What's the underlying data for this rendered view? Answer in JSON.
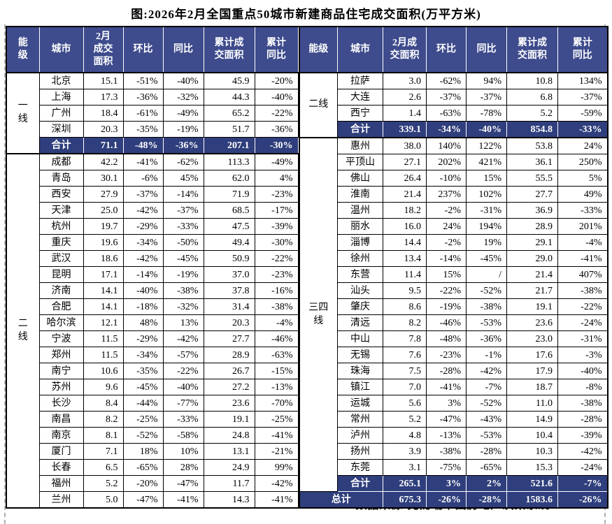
{
  "title": "图:2026年2月全国重点50城市新建商品住宅成交面积(万平方米)",
  "source": "数据来源:克而瑞中国房地产决策系统",
  "columns": [
    "能级",
    "城市",
    "2月成交面积",
    "环比",
    "同比",
    "累计成交面积",
    "累计同比"
  ],
  "colors": {
    "header_bg": "#3E4B8C",
    "highlight_bg": "#2F3E7C",
    "border": "#000000",
    "header_text": "#FFFFFF",
    "page_break_dash": "#B0B0B0"
  },
  "left": {
    "tiers": [
      {
        "label": "一线",
        "span": 5
      },
      {
        "label": "二线",
        "span": 22
      }
    ],
    "highlight_rows": [
      4
    ],
    "rows": [
      [
        "北京",
        "15.1",
        "-51%",
        "-40%",
        "45.9",
        "-20%"
      ],
      [
        "上海",
        "17.3",
        "-36%",
        "-32%",
        "44.3",
        "-40%"
      ],
      [
        "广州",
        "18.4",
        "-61%",
        "-49%",
        "65.2",
        "-22%"
      ],
      [
        "深圳",
        "20.3",
        "-35%",
        "-19%",
        "51.7",
        "-36%"
      ],
      [
        "合计",
        "71.1",
        "-48%",
        "-36%",
        "207.1",
        "-30%"
      ],
      [
        "成都",
        "42.2",
        "-41%",
        "-62%",
        "113.3",
        "-49%"
      ],
      [
        "青岛",
        "30.1",
        "-6%",
        "45%",
        "62.0",
        "4%"
      ],
      [
        "西安",
        "27.9",
        "-37%",
        "-14%",
        "71.9",
        "-23%"
      ],
      [
        "天津",
        "25.0",
        "-42%",
        "-37%",
        "68.5",
        "-17%"
      ],
      [
        "杭州",
        "19.7",
        "-29%",
        "-33%",
        "47.5",
        "-39%"
      ],
      [
        "重庆",
        "19.6",
        "-34%",
        "-50%",
        "49.4",
        "-30%"
      ],
      [
        "武汉",
        "18.6",
        "-42%",
        "-45%",
        "50.9",
        "-22%"
      ],
      [
        "昆明",
        "17.1",
        "-14%",
        "-19%",
        "37.0",
        "-23%"
      ],
      [
        "济南",
        "14.1",
        "-40%",
        "-38%",
        "37.8",
        "-16%"
      ],
      [
        "合肥",
        "14.1",
        "-18%",
        "-32%",
        "31.4",
        "-38%"
      ],
      [
        "哈尔滨",
        "12.1",
        "48%",
        "13%",
        "20.3",
        "-4%"
      ],
      [
        "宁波",
        "11.5",
        "-29%",
        "-42%",
        "27.7",
        "-46%"
      ],
      [
        "郑州",
        "11.5",
        "-34%",
        "-57%",
        "28.9",
        "-63%"
      ],
      [
        "南宁",
        "10.6",
        "-35%",
        "-22%",
        "26.7",
        "-15%"
      ],
      [
        "苏州",
        "9.6",
        "-45%",
        "-40%",
        "27.2",
        "-13%"
      ],
      [
        "长沙",
        "8.4",
        "-44%",
        "-77%",
        "23.6",
        "-70%"
      ],
      [
        "南昌",
        "8.2",
        "-25%",
        "-33%",
        "19.1",
        "-25%"
      ],
      [
        "南京",
        "8.1",
        "-52%",
        "-58%",
        "24.8",
        "-41%"
      ],
      [
        "厦门",
        "7.1",
        "18%",
        "10%",
        "13.1",
        "-21%"
      ],
      [
        "长春",
        "6.5",
        "-65%",
        "28%",
        "24.9",
        "99%"
      ],
      [
        "福州",
        "5.2",
        "-20%",
        "-47%",
        "11.7",
        "-42%"
      ],
      [
        "兰州",
        "5.0",
        "-47%",
        "-41%",
        "14.3",
        "-41%"
      ]
    ]
  },
  "right": {
    "tiers": [
      {
        "label": "二线",
        "span": 4
      },
      {
        "label": "三四线",
        "span": 22
      }
    ],
    "highlight_rows": [
      3,
      25,
      26
    ],
    "grand_total_row": 26,
    "rows": [
      [
        "拉萨",
        "3.0",
        "-62%",
        "94%",
        "10.8",
        "134%"
      ],
      [
        "大连",
        "2.6",
        "-37%",
        "-37%",
        "6.8",
        "-37%"
      ],
      [
        "西宁",
        "1.4",
        "-63%",
        "-78%",
        "5.2",
        "-59%"
      ],
      [
        "合计",
        "339.1",
        "-34%",
        "-40%",
        "854.8",
        "-33%"
      ],
      [
        "惠州",
        "38.0",
        "140%",
        "122%",
        "53.8",
        "24%"
      ],
      [
        "平顶山",
        "27.1",
        "202%",
        "421%",
        "36.1",
        "250%"
      ],
      [
        "佛山",
        "26.4",
        "-10%",
        "15%",
        "55.5",
        "5%"
      ],
      [
        "淮南",
        "21.4",
        "237%",
        "102%",
        "27.7",
        "49%"
      ],
      [
        "温州",
        "18.2",
        "-2%",
        "-31%",
        "36.9",
        "-33%"
      ],
      [
        "丽水",
        "16.0",
        "24%",
        "194%",
        "28.9",
        "201%"
      ],
      [
        "淄博",
        "14.4",
        "-2%",
        "19%",
        "29.1",
        "-4%"
      ],
      [
        "徐州",
        "13.4",
        "-14%",
        "-45%",
        "29.0",
        "-41%"
      ],
      [
        "东营",
        "11.4",
        "15%",
        "/",
        "21.4",
        "407%"
      ],
      [
        "汕头",
        "9.5",
        "-22%",
        "-52%",
        "21.7",
        "-38%"
      ],
      [
        "肇庆",
        "8.6",
        "-19%",
        "-38%",
        "19.1",
        "-22%"
      ],
      [
        "清远",
        "8.2",
        "-46%",
        "-53%",
        "23.6",
        "-24%"
      ],
      [
        "中山",
        "7.8",
        "-48%",
        "-36%",
        "23.0",
        "-31%"
      ],
      [
        "无锡",
        "7.6",
        "-23%",
        "-1%",
        "17.6",
        "-3%"
      ],
      [
        "珠海",
        "7.5",
        "-28%",
        "-42%",
        "17.9",
        "-40%"
      ],
      [
        "镇江",
        "7.0",
        "-41%",
        "-7%",
        "18.7",
        "-8%"
      ],
      [
        "运城",
        "5.6",
        "3%",
        "-52%",
        "11.0",
        "-38%"
      ],
      [
        "常州",
        "5.2",
        "-47%",
        "-43%",
        "14.9",
        "-28%"
      ],
      [
        "泸州",
        "4.8",
        "-13%",
        "-53%",
        "10.4",
        "-39%"
      ],
      [
        "扬州",
        "3.9",
        "-38%",
        "-28%",
        "10.3",
        "-42%"
      ],
      [
        "东莞",
        "3.1",
        "-75%",
        "-65%",
        "15.3",
        "-24%"
      ],
      [
        "合计",
        "265.1",
        "3%",
        "2%",
        "521.6",
        "-7%"
      ],
      [
        "总计",
        "675.3",
        "-26%",
        "-28%",
        "1583.6",
        "-26%"
      ]
    ]
  }
}
